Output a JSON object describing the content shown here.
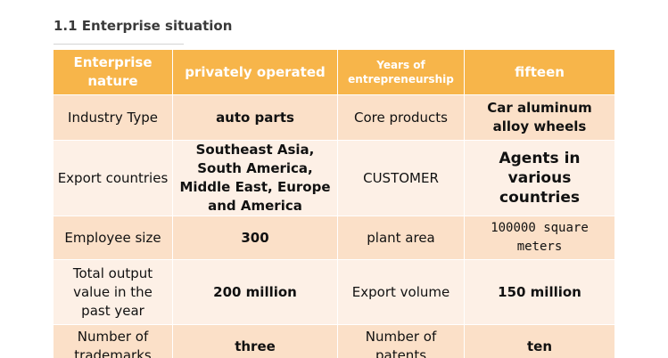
{
  "section": {
    "title": "1.1 Enterprise situation"
  },
  "table": {
    "header": [
      "Enterprise nature",
      "privately operated",
      "Years of entrepreneurship",
      "fifteen"
    ],
    "rows": [
      [
        "Industry Type",
        "auto parts",
        "Core products",
        "Car aluminum alloy wheels"
      ],
      [
        "Export countries",
        "Southeast Asia, South America, Middle East, Europe and America",
        "CUSTOMER",
        "Agents in various countries"
      ],
      [
        "Employee size",
        "300",
        "plant area",
        "100000 square meters"
      ],
      [
        "Total output value in the past year",
        "200 million",
        "Export volume",
        "150 million"
      ],
      [
        "Number of trademarks",
        "three",
        "Number of patents",
        "ten"
      ]
    ]
  },
  "colors": {
    "header_bg": "#f7b54a",
    "row_dark_bg": "#fbe0c8",
    "row_light_bg": "#fdf0e6"
  }
}
